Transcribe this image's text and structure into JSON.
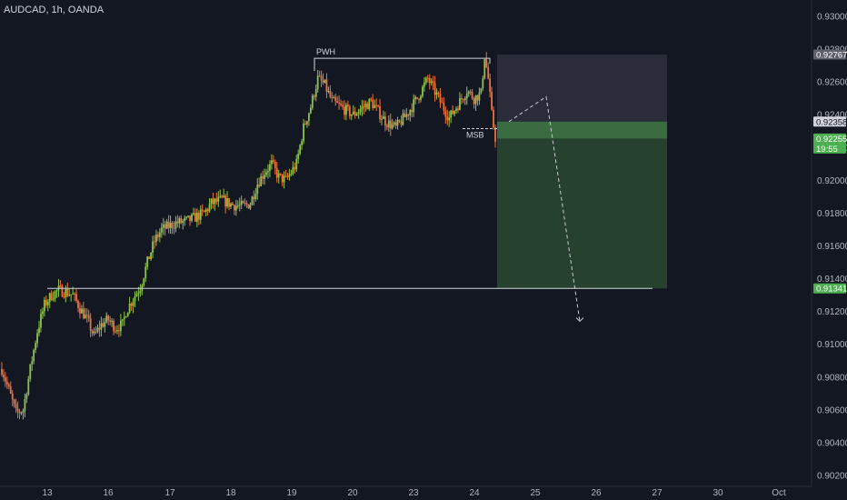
{
  "header": {
    "title": "AUDCAD, 1h, OANDA"
  },
  "colors": {
    "background": "#131722",
    "bull": "#8bc34a",
    "bear": "#f0703a",
    "text": "#b2b5be",
    "stop_zone": "#2a2d39",
    "profit_zone": "#27412f",
    "entry_band": "#3a6b41",
    "price_tag": "#4caf50"
  },
  "chart_data": {
    "type": "candlestick",
    "symbol": "AUDCAD",
    "timeframe": "1h",
    "source": "OANDA",
    "x_ticks": [
      "13",
      "16",
      "17",
      "18",
      "19",
      "20",
      "23",
      "24",
      "25",
      "26",
      "27",
      "30",
      "Oct"
    ],
    "y_ticks": [
      "0.93000",
      "0.92800",
      "0.92600",
      "0.92400",
      "0.92200",
      "0.92000",
      "0.91800",
      "0.91600",
      "0.91400",
      "0.91200",
      "0.91000",
      "0.90800",
      "0.90600",
      "0.90400",
      "0.90200"
    ],
    "y_range": [
      0.9019,
      0.9305
    ],
    "price_labels": [
      {
        "label": "0.92767",
        "value": 0.92767,
        "style": "stop"
      },
      {
        "label": "0.92358",
        "value": 0.92358,
        "style": "entry"
      },
      {
        "label": "0.92255",
        "value": 0.92255,
        "style": "current",
        "countdown": "19:55"
      },
      {
        "label": "0.91341",
        "value": 0.91341,
        "style": "target"
      }
    ],
    "annotations": [
      {
        "text": "PWH",
        "value": 0.92744
      },
      {
        "text": "MSB",
        "value": 0.92315
      }
    ],
    "position": {
      "entry": 0.92358,
      "stop": 0.92767,
      "target": 0.91341
    },
    "support_level": 0.91341,
    "path_projection": [
      0.92358,
      0.9251,
      0.9114
    ],
    "anchors": [
      [
        0,
        0.9085
      ],
      [
        4,
        0.9072
      ],
      [
        8,
        0.9058
      ],
      [
        12,
        0.906
      ],
      [
        16,
        0.9085
      ],
      [
        20,
        0.9108
      ],
      [
        24,
        0.9124
      ],
      [
        28,
        0.913
      ],
      [
        32,
        0.9133
      ],
      [
        36,
        0.9132
      ],
      [
        40,
        0.913
      ],
      [
        44,
        0.9122
      ],
      [
        48,
        0.9115
      ],
      [
        52,
        0.9105
      ],
      [
        56,
        0.9112
      ],
      [
        60,
        0.9115
      ],
      [
        64,
        0.911
      ],
      [
        68,
        0.9112
      ],
      [
        70,
        0.912
      ],
      [
        74,
        0.9128
      ],
      [
        78,
        0.9135
      ],
      [
        82,
        0.915
      ],
      [
        86,
        0.9163
      ],
      [
        90,
        0.917
      ],
      [
        94,
        0.9172
      ],
      [
        98,
        0.9174
      ],
      [
        104,
        0.9175
      ],
      [
        110,
        0.9178
      ],
      [
        114,
        0.918
      ],
      [
        118,
        0.9186
      ],
      [
        124,
        0.9188
      ],
      [
        130,
        0.9185
      ],
      [
        136,
        0.9184
      ],
      [
        140,
        0.9186
      ],
      [
        144,
        0.9198
      ],
      [
        148,
        0.9205
      ],
      [
        152,
        0.921
      ],
      [
        156,
        0.9202
      ],
      [
        160,
        0.92
      ],
      [
        166,
        0.921
      ],
      [
        170,
        0.9232
      ],
      [
        174,
        0.9245
      ],
      [
        178,
        0.9262
      ],
      [
        182,
        0.9258
      ],
      [
        186,
        0.9248
      ],
      [
        192,
        0.9244
      ],
      [
        198,
        0.924
      ],
      [
        204,
        0.9245
      ],
      [
        208,
        0.9248
      ],
      [
        212,
        0.9242
      ],
      [
        216,
        0.9236
      ],
      [
        222,
        0.9232
      ],
      [
        228,
        0.924
      ],
      [
        234,
        0.925
      ],
      [
        240,
        0.9262
      ],
      [
        246,
        0.925
      ],
      [
        252,
        0.9238
      ],
      [
        258,
        0.9248
      ],
      [
        262,
        0.9255
      ],
      [
        266,
        0.925
      ],
      [
        270,
        0.9253
      ],
      [
        272,
        0.9276
      ],
      [
        274,
        0.9262
      ],
      [
        276,
        0.924
      ],
      [
        278,
        0.9226
      ]
    ]
  }
}
